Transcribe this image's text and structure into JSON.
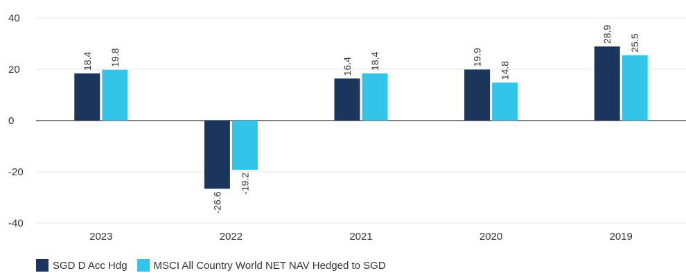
{
  "chart_data": {
    "type": "bar",
    "categories": [
      "2023",
      "2022",
      "2021",
      "2020",
      "2019"
    ],
    "series": [
      {
        "name": "SGD D Acc Hdg",
        "color": "#1b365d",
        "values": [
          18.4,
          -26.6,
          16.4,
          19.9,
          28.9
        ]
      },
      {
        "name": "MSCI All Country World NET NAV Hedged to SGD",
        "color": "#32c5e9",
        "values": [
          19.8,
          -19.2,
          18.4,
          14.8,
          25.5
        ]
      }
    ],
    "ylim": [
      -40,
      40
    ],
    "yticks": [
      40,
      20,
      0,
      -20,
      -40
    ],
    "grid": true,
    "legend": "bottom-left",
    "data_labels": true,
    "label_rotation": "vertical"
  }
}
